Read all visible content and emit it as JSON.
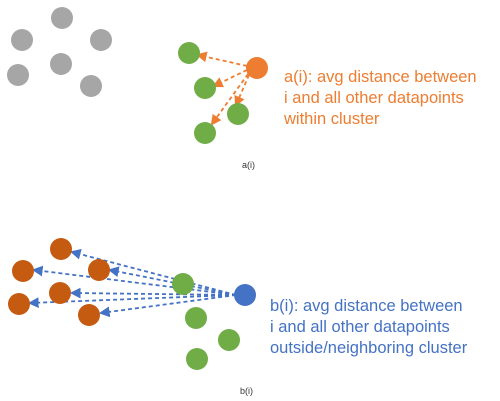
{
  "panel_a": {
    "caption": "a(i)",
    "description_lines": [
      "a(i): avg distance between",
      "i and all other datapoints",
      "within cluster"
    ]
  },
  "panel_b": {
    "caption": "b(i)",
    "description_lines": [
      "b(i): avg distance between",
      "i and all other datapoints",
      "outside/neighboring cluster"
    ]
  },
  "colors": {
    "other_cluster_gray": "#a6a6a6",
    "own_cluster_green": "#70ad47",
    "point_i_orange": "#ed7d31",
    "point_i_blue": "#4472c4",
    "neighbor_cluster_brown": "#c55a11",
    "text_orange": "#ed7d31",
    "text_blue": "#4472c4"
  }
}
